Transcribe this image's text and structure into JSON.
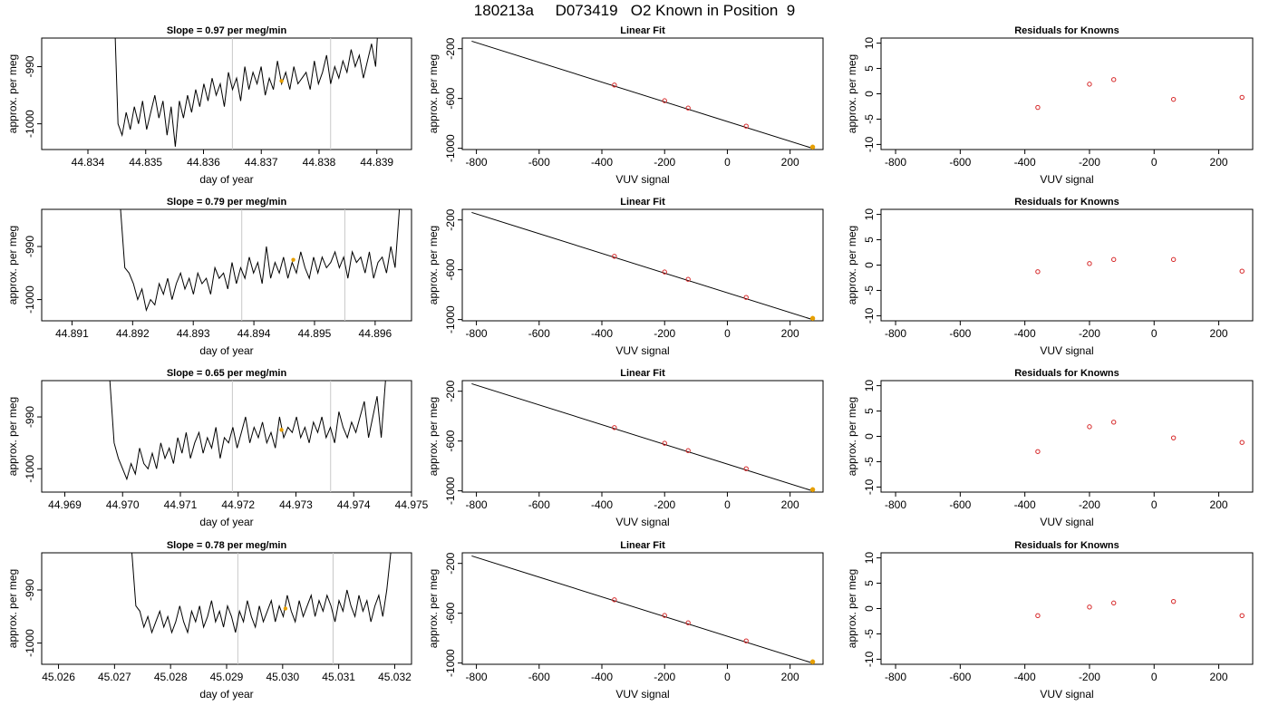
{
  "page_title": "180213a     D073419   O2 Known in Position  9",
  "colors": {
    "line": "#000000",
    "marker_point": "#e69f00",
    "residual_point": "#d62728",
    "vline": "#c8c8c8"
  },
  "chart_data": [
    {
      "type": "line",
      "title": "Slope =  0.97  per meg/min",
      "xlabel": "day of year",
      "ylabel": "approx. per meg",
      "x_ticks": [
        "44.834",
        "44.835",
        "44.836",
        "44.837",
        "44.838",
        "44.839"
      ],
      "y_ticks": [
        "-1000",
        "-990"
      ],
      "xlim": [
        44.8332,
        44.8396
      ],
      "ylim": [
        -1004.5,
        -985
      ],
      "vlines": [
        44.8365,
        44.8382
      ],
      "marker_point": {
        "x": 44.83735,
        "y": -992.5
      },
      "series": [
        {
          "x_start": 44.83445,
          "x_end": 44.83905,
          "values": [
            -978,
            -1000,
            -1002,
            -998,
            -1001,
            -997,
            -1000,
            -996,
            -1001,
            -998,
            -995,
            -999,
            -996,
            -1002,
            -997,
            -1004,
            -996,
            -999,
            -995,
            -998,
            -994,
            -997,
            -993,
            -996,
            -992,
            -995,
            -993,
            -997,
            -991,
            -994,
            -992,
            -996,
            -990,
            -994,
            -991,
            -993,
            -990,
            -995,
            -992,
            -994,
            -989,
            -993,
            -991,
            -994,
            -990,
            -993,
            -992,
            -991,
            -994,
            -989,
            -993,
            -991,
            -988,
            -993,
            -990,
            -992,
            -989,
            -991,
            -987,
            -990,
            -988,
            -992,
            -989,
            -986,
            -990,
            -978
          ]
        }
      ]
    },
    {
      "type": "line",
      "title": "Linear Fit",
      "xlabel": "VUV signal",
      "ylabel": "approx. per meg",
      "x_ticks": [
        "-800",
        "-600",
        "-400",
        "-200",
        "0",
        "200"
      ],
      "y_ticks": [
        "-1000",
        "-600",
        "-200"
      ],
      "xlim": [
        -845,
        305
      ],
      "ylim": [
        -1010,
        -115
      ],
      "fit_line": {
        "x": [
          -815,
          275
        ],
        "y": [
          -140,
          -1003
        ]
      },
      "points": [
        {
          "x": -360,
          "y": -492
        },
        {
          "x": -200,
          "y": -618
        },
        {
          "x": -125,
          "y": -677
        },
        {
          "x": 60,
          "y": -822
        },
        {
          "x": 272,
          "y": -990
        }
      ]
    },
    {
      "type": "scatter",
      "title": "Residuals for Knowns",
      "xlabel": "VUV signal",
      "ylabel": "approx. per meg",
      "x_ticks": [
        "-800",
        "-600",
        "-400",
        "-200",
        "0",
        "200"
      ],
      "y_ticks": [
        "-10",
        "-5",
        "0",
        "5",
        "10"
      ],
      "xlim": [
        -845,
        305
      ],
      "ylim": [
        -11,
        11
      ],
      "points": [
        {
          "x": -360,
          "y": -2.7
        },
        {
          "x": -200,
          "y": 1.9
        },
        {
          "x": -125,
          "y": 2.8
        },
        {
          "x": 60,
          "y": -1.1
        },
        {
          "x": 272,
          "y": -0.7
        }
      ]
    },
    {
      "type": "line",
      "title": "Slope =  0.79  per meg/min",
      "xlabel": "day of year",
      "ylabel": "approx. per meg",
      "x_ticks": [
        "44.891",
        "44.892",
        "44.893",
        "44.894",
        "44.895",
        "44.896"
      ],
      "y_ticks": [
        "-1000",
        "-990"
      ],
      "xlim": [
        44.8905,
        44.8966
      ],
      "ylim": [
        -1004,
        -983
      ],
      "vlines": [
        44.8938,
        44.8955
      ],
      "marker_point": {
        "x": 44.89465,
        "y": -992.5
      },
      "series": [
        {
          "x_start": 44.8918,
          "x_end": 44.8964,
          "values": [
            -983,
            -994,
            -995,
            -997,
            -1000,
            -998,
            -1002,
            -1000,
            -1001,
            -997,
            -999,
            -996,
            -1000,
            -997,
            -995,
            -998,
            -996,
            -999,
            -995,
            -997,
            -996,
            -999,
            -994,
            -996,
            -995,
            -998,
            -993,
            -997,
            -994,
            -996,
            -992,
            -995,
            -993,
            -997,
            -990,
            -996,
            -993,
            -995,
            -992,
            -996,
            -993,
            -995,
            -991,
            -994,
            -996,
            -992,
            -995,
            -992,
            -994,
            -993,
            -991,
            -994,
            -992,
            -996,
            -991,
            -993,
            -992,
            -995,
            -991,
            -996,
            -993,
            -992,
            -995,
            -990,
            -994,
            -983
          ]
        }
      ]
    },
    {
      "type": "line",
      "title": "Linear Fit",
      "xlabel": "VUV signal",
      "ylabel": "approx. per meg",
      "x_ticks": [
        "-800",
        "-600",
        "-400",
        "-200",
        "0",
        "200"
      ],
      "y_ticks": [
        "-1000",
        "-600",
        "-200"
      ],
      "xlim": [
        -845,
        305
      ],
      "ylim": [
        -1010,
        -115
      ],
      "fit_line": {
        "x": [
          -815,
          275
        ],
        "y": [
          -140,
          -1003
        ]
      },
      "points": [
        {
          "x": -360,
          "y": -492
        },
        {
          "x": -200,
          "y": -618
        },
        {
          "x": -125,
          "y": -677
        },
        {
          "x": 60,
          "y": -822
        },
        {
          "x": 272,
          "y": -990
        }
      ]
    },
    {
      "type": "scatter",
      "title": "Residuals for Knowns",
      "xlabel": "VUV signal",
      "ylabel": "approx. per meg",
      "x_ticks": [
        "-800",
        "-600",
        "-400",
        "-200",
        "0",
        "200"
      ],
      "y_ticks": [
        "-10",
        "-5",
        "0",
        "5",
        "10"
      ],
      "xlim": [
        -845,
        305
      ],
      "ylim": [
        -11,
        11
      ],
      "points": [
        {
          "x": -360,
          "y": -1.3
        },
        {
          "x": -200,
          "y": 0.3
        },
        {
          "x": -125,
          "y": 1.1
        },
        {
          "x": 60,
          "y": 1.1
        },
        {
          "x": 272,
          "y": -1.2
        }
      ]
    },
    {
      "type": "line",
      "title": "Slope =  0.65  per meg/min",
      "xlabel": "day of year",
      "ylabel": "approx. per meg",
      "x_ticks": [
        "44.969",
        "44.970",
        "44.971",
        "44.972",
        "44.973",
        "44.974",
        "44.975"
      ],
      "y_ticks": [
        "-1000",
        "-990"
      ],
      "xlim": [
        44.9686,
        44.975
      ],
      "ylim": [
        -1004.5,
        -983
      ],
      "vlines": [
        44.9719,
        44.9736
      ],
      "marker_point": {
        "x": 44.97275,
        "y": -992.5
      },
      "series": [
        {
          "x_start": 44.96978,
          "x_end": 44.97455,
          "values": [
            -983,
            -995,
            -998,
            -1000,
            -1002,
            -999,
            -1001,
            -996,
            -999,
            -1000,
            -997,
            -1000,
            -995,
            -998,
            -996,
            -999,
            -994,
            -997,
            -993,
            -998,
            -995,
            -993,
            -997,
            -994,
            -996,
            -992,
            -998,
            -994,
            -995,
            -992,
            -996,
            -993,
            -990,
            -995,
            -992,
            -994,
            -991,
            -995,
            -993,
            -996,
            -990,
            -994,
            -992,
            -993,
            -990,
            -994,
            -992,
            -995,
            -991,
            -993,
            -990,
            -994,
            -992,
            -995,
            -989,
            -992,
            -994,
            -991,
            -993,
            -990,
            -987,
            -994,
            -990,
            -986,
            -994,
            -983
          ]
        }
      ]
    },
    {
      "type": "line",
      "title": "Linear Fit",
      "xlabel": "VUV signal",
      "ylabel": "approx. per meg",
      "x_ticks": [
        "-800",
        "-600",
        "-400",
        "-200",
        "0",
        "200"
      ],
      "y_ticks": [
        "-1000",
        "-600",
        "-200"
      ],
      "xlim": [
        -845,
        305
      ],
      "ylim": [
        -1010,
        -115
      ],
      "fit_line": {
        "x": [
          -815,
          275
        ],
        "y": [
          -140,
          -1003
        ]
      },
      "points": [
        {
          "x": -360,
          "y": -492
        },
        {
          "x": -200,
          "y": -618
        },
        {
          "x": -125,
          "y": -677
        },
        {
          "x": 60,
          "y": -822
        },
        {
          "x": 272,
          "y": -990
        }
      ]
    },
    {
      "type": "scatter",
      "title": "Residuals for Knowns",
      "xlabel": "VUV signal",
      "ylabel": "approx. per meg",
      "x_ticks": [
        "-800",
        "-600",
        "-400",
        "-200",
        "0",
        "200"
      ],
      "y_ticks": [
        "-10",
        "-5",
        "0",
        "5",
        "10"
      ],
      "xlim": [
        -845,
        305
      ],
      "ylim": [
        -11,
        11
      ],
      "points": [
        {
          "x": -360,
          "y": -3.0
        },
        {
          "x": -200,
          "y": 1.9
        },
        {
          "x": -125,
          "y": 2.8
        },
        {
          "x": 60,
          "y": -0.3
        },
        {
          "x": 272,
          "y": -1.2
        }
      ]
    },
    {
      "type": "line",
      "title": "Slope =  0.78  per meg/min",
      "xlabel": "day of year",
      "ylabel": "approx. per meg",
      "x_ticks": [
        "45.026",
        "45.027",
        "45.028",
        "45.029",
        "45.030",
        "45.031",
        "45.032"
      ],
      "y_ticks": [
        "-1000",
        "-990"
      ],
      "xlim": [
        45.0257,
        45.0323
      ],
      "ylim": [
        -1004,
        -983
      ],
      "vlines": [
        45.0292,
        45.0309
      ],
      "marker_point": {
        "x": 45.03005,
        "y": -993.5
      },
      "series": [
        {
          "x_start": 45.02731,
          "x_end": 45.03193,
          "values": [
            -983,
            -993,
            -994,
            -997,
            -995,
            -998,
            -996,
            -994,
            -997,
            -995,
            -998,
            -996,
            -993,
            -996,
            -998,
            -994,
            -996,
            -993,
            -997,
            -995,
            -992,
            -996,
            -994,
            -997,
            -993,
            -995,
            -998,
            -994,
            -996,
            -992,
            -995,
            -997,
            -993,
            -996,
            -994,
            -992,
            -996,
            -993,
            -995,
            -991,
            -994,
            -996,
            -992,
            -995,
            -993,
            -991,
            -995,
            -992,
            -994,
            -991,
            -993,
            -996,
            -992,
            -994,
            -990,
            -993,
            -995,
            -991,
            -994,
            -992,
            -996,
            -993,
            -991,
            -995,
            -990,
            -983
          ]
        }
      ]
    },
    {
      "type": "line",
      "title": "Linear Fit",
      "xlabel": "VUV signal",
      "ylabel": "approx. per meg",
      "x_ticks": [
        "-800",
        "-600",
        "-400",
        "-200",
        "0",
        "200"
      ],
      "y_ticks": [
        "-1000",
        "-600",
        "-200"
      ],
      "xlim": [
        -845,
        305
      ],
      "ylim": [
        -1010,
        -115
      ],
      "fit_line": {
        "x": [
          -815,
          275
        ],
        "y": [
          -140,
          -1003
        ]
      },
      "points": [
        {
          "x": -360,
          "y": -492
        },
        {
          "x": -200,
          "y": -618
        },
        {
          "x": -125,
          "y": -677
        },
        {
          "x": 60,
          "y": -822
        },
        {
          "x": 272,
          "y": -990
        }
      ]
    },
    {
      "type": "scatter",
      "title": "Residuals for Knowns",
      "xlabel": "VUV signal",
      "ylabel": "approx. per meg",
      "x_ticks": [
        "-800",
        "-600",
        "-400",
        "-200",
        "0",
        "200"
      ],
      "y_ticks": [
        "-10",
        "-5",
        "0",
        "5",
        "10"
      ],
      "xlim": [
        -845,
        305
      ],
      "ylim": [
        -11,
        11
      ],
      "points": [
        {
          "x": -360,
          "y": -1.4
        },
        {
          "x": -200,
          "y": 0.3
        },
        {
          "x": -125,
          "y": 1.1
        },
        {
          "x": 60,
          "y": 1.4
        },
        {
          "x": 272,
          "y": -1.4
        }
      ]
    }
  ]
}
